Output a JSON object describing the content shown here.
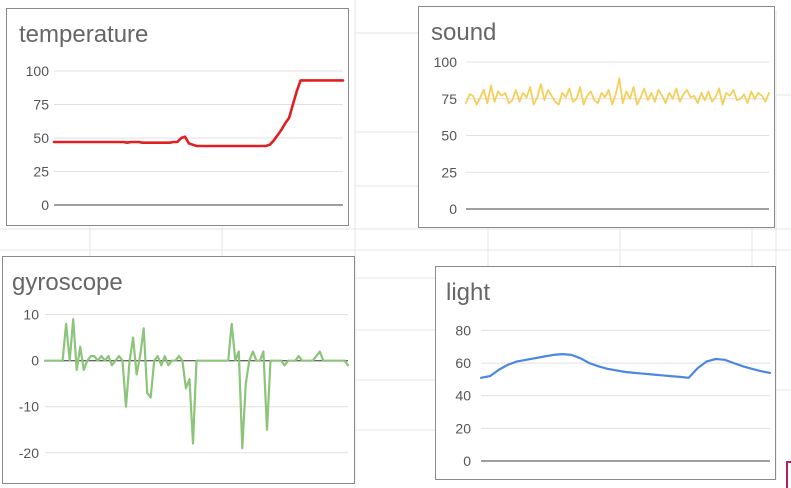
{
  "chart_data": [
    {
      "type": "line",
      "title": "temperature",
      "ylim": [
        0,
        100
      ],
      "yticks": [
        0,
        25,
        50,
        75,
        100
      ],
      "color": "#e02020",
      "values": [
        47,
        47,
        47,
        47,
        47,
        47,
        47,
        47,
        47,
        47,
        47,
        47,
        47,
        47,
        47,
        47,
        47,
        47,
        47,
        46.5,
        47,
        47,
        47,
        46.5,
        46.5,
        46.5,
        46.5,
        46.5,
        46.5,
        46.5,
        46.5,
        47,
        47,
        50,
        51,
        46,
        45,
        44,
        44,
        44,
        44,
        44,
        44,
        44,
        44,
        44,
        44,
        44,
        44,
        44,
        44,
        44,
        44,
        44,
        44,
        44,
        45,
        48,
        52,
        56,
        61,
        65,
        75,
        85,
        93,
        93,
        93,
        93,
        93,
        93,
        93,
        93,
        93,
        93,
        93,
        93
      ]
    },
    {
      "type": "line",
      "title": "sound",
      "ylim": [
        0,
        100
      ],
      "yticks": [
        0,
        25,
        50,
        75,
        100
      ],
      "color": "#f5cf5a",
      "values": [
        72,
        78,
        77,
        71,
        76,
        81,
        72,
        84,
        73,
        80,
        77,
        79,
        72,
        74,
        81,
        73,
        79,
        76,
        83,
        71,
        76,
        85,
        74,
        81,
        77,
        73,
        71,
        79,
        76,
        82,
        73,
        75,
        83,
        71,
        77,
        80,
        74,
        72,
        79,
        76,
        81,
        71,
        78,
        89,
        72,
        80,
        75,
        83,
        71,
        76,
        82,
        74,
        79,
        73,
        81,
        77,
        72,
        79,
        75,
        82,
        73,
        78,
        81,
        76,
        77,
        72,
        79,
        74,
        80,
        73,
        76,
        82,
        71,
        79,
        77,
        81,
        74,
        75,
        78,
        72,
        80,
        75,
        79,
        77,
        73,
        79
      ]
    },
    {
      "type": "line",
      "title": "gyroscope",
      "ylim": [
        -22,
        11
      ],
      "yticks": [
        -20,
        -10,
        0,
        10
      ],
      "color": "#8cc47a",
      "values": [
        0,
        0,
        0,
        0,
        0,
        0,
        8,
        0,
        9,
        -2,
        3,
        -2,
        0,
        1,
        1,
        0,
        1,
        0,
        1,
        -1,
        0,
        1,
        0,
        -10,
        0,
        5,
        -3,
        1,
        7,
        -7,
        -8,
        0,
        1,
        -1,
        1,
        -1,
        0,
        0,
        1,
        0,
        -6,
        -4,
        -18,
        0,
        0,
        0,
        0,
        0,
        0,
        0,
        0,
        0,
        0,
        8,
        0,
        2,
        -19,
        -5,
        0,
        2,
        0,
        0,
        2,
        -15,
        0,
        0,
        0,
        0,
        -1,
        0,
        0,
        0,
        1,
        0,
        0,
        0,
        0,
        1,
        2,
        0,
        0,
        0,
        0,
        0,
        0,
        0,
        -1
      ]
    },
    {
      "type": "line",
      "title": "light",
      "ylim": [
        0,
        87
      ],
      "yticks": [
        0,
        20,
        40,
        60,
        80
      ],
      "color": "#4a88e0",
      "values": [
        51,
        52,
        56,
        59,
        61,
        62,
        63,
        64,
        65,
        65.5,
        65,
        63,
        60,
        58,
        56.5,
        55.5,
        54.5,
        54,
        53.5,
        53,
        52.5,
        52,
        51.5,
        51,
        57,
        61,
        62.5,
        62,
        60,
        58,
        56.5,
        55,
        54
      ]
    }
  ]
}
